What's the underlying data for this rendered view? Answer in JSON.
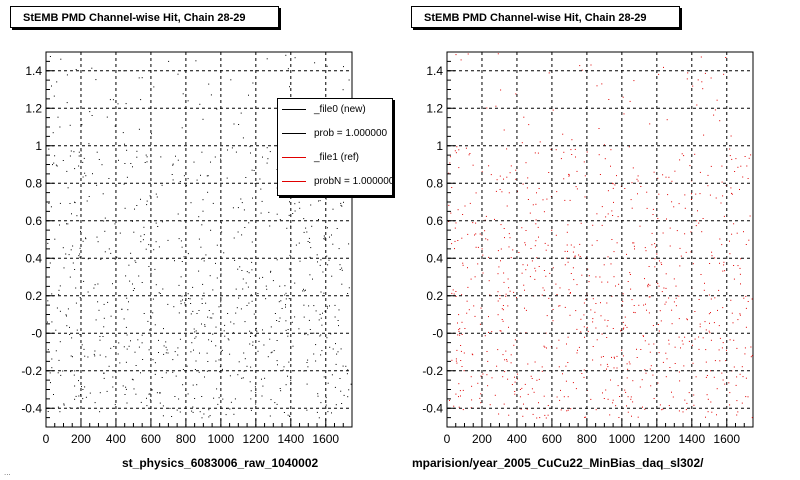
{
  "panels": [
    {
      "title": "StEMB PMD Channel-wise Hit, Chain 28-29",
      "footer": "st_physics_6083006_raw_1040002",
      "dot_color": "#000000"
    },
    {
      "title": "StEMB PMD Channel-wise Hit, Chain 28-29",
      "footer": "mparision/year_2005_CuCu22_MinBias_daq_sl302/",
      "dot_color": "#e00000"
    }
  ],
  "legend": {
    "entries": [
      {
        "label": "_file0 (new)",
        "color": "#000000"
      },
      {
        "label": "prob = 1.000000",
        "color": "#000000"
      },
      {
        "label": "_file1 (ref)",
        "color": "#e00000"
      },
      {
        "label": "probN = 1.000000",
        "color": "#e00000"
      }
    ]
  },
  "stub_text": "...",
  "chart_data": [
    {
      "type": "scatter",
      "title": "StEMB PMD Channel-wise Hit, Chain 28-29",
      "xlabel": "st_physics_6083006_raw_1040002",
      "ylabel": "",
      "xlim": [
        0,
        1750
      ],
      "ylim": [
        -0.5,
        1.5
      ],
      "x_ticks": [
        0,
        200,
        400,
        600,
        800,
        1000,
        1200,
        1400,
        1600
      ],
      "y_ticks": [
        -0.4,
        -0.2,
        0,
        0.2,
        0.4,
        0.6,
        0.8,
        1,
        1.2,
        1.4
      ],
      "y_tick_labels": [
        "-0.4",
        "-0.2",
        "-0",
        "0.2",
        "0.4",
        "0.6",
        "0.8",
        "1",
        "1.2",
        "1.4"
      ],
      "grid": true,
      "series": [
        {
          "name": "_file0 (new)",
          "color": "#000000"
        }
      ],
      "legend_position": "top-right"
    },
    {
      "type": "scatter",
      "title": "StEMB PMD Channel-wise Hit, Chain 28-29",
      "xlabel": "mparision/year_2005_CuCu22_MinBias_daq_sl302/",
      "ylabel": "",
      "xlim": [
        0,
        1750
      ],
      "ylim": [
        -0.5,
        1.5
      ],
      "x_ticks": [
        0,
        200,
        400,
        600,
        800,
        1000,
        1200,
        1400,
        1600
      ],
      "y_ticks": [
        -0.4,
        -0.2,
        0,
        0.2,
        0.4,
        0.6,
        0.8,
        1,
        1.2,
        1.4
      ],
      "y_tick_labels": [
        "-0.4",
        "-0.2",
        "-0",
        "0.2",
        "0.4",
        "0.6",
        "0.8",
        "1",
        "1.2",
        "1.4"
      ],
      "grid": true,
      "series": [
        {
          "name": "_file1 (ref)",
          "color": "#e00000"
        }
      ]
    }
  ]
}
